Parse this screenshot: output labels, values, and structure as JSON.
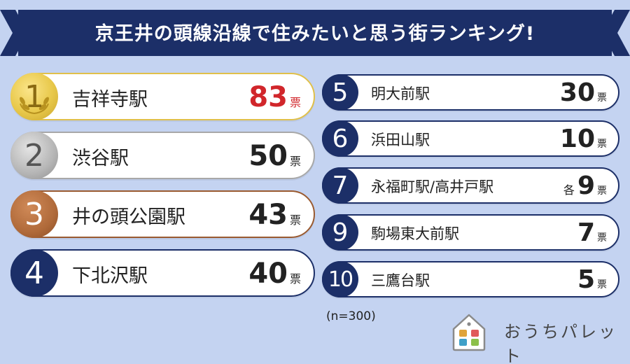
{
  "title": "京王井の頭線沿線で住みたいと思う街ランキング!",
  "colors": {
    "background": "#c4d3f1",
    "navy": "#1c2f68",
    "gold": "#e8c84a",
    "silver": "#b5b5b5",
    "bronze": "#b06a3a",
    "red_votes": "#d1262b"
  },
  "rankings": [
    {
      "rank": "1",
      "name": "吉祥寺駅",
      "votes": "83",
      "unit": "票",
      "prefix": ""
    },
    {
      "rank": "2",
      "name": "渋谷駅",
      "votes": "50",
      "unit": "票",
      "prefix": ""
    },
    {
      "rank": "3",
      "name": "井の頭公園駅",
      "votes": "43",
      "unit": "票",
      "prefix": ""
    },
    {
      "rank": "4",
      "name": "下北沢駅",
      "votes": "40",
      "unit": "票",
      "prefix": ""
    },
    {
      "rank": "5",
      "name": "明大前駅",
      "votes": "30",
      "unit": "票",
      "prefix": ""
    },
    {
      "rank": "6",
      "name": "浜田山駅",
      "votes": "10",
      "unit": "票",
      "prefix": ""
    },
    {
      "rank": "7",
      "name": "永福町駅/高井戸駅",
      "votes": "9",
      "unit": "票",
      "prefix": "各"
    },
    {
      "rank": "9",
      "name": "駒場東大前駅",
      "votes": "7",
      "unit": "票",
      "prefix": ""
    },
    {
      "rank": "10",
      "name": "三鷹台駅",
      "votes": "5",
      "unit": "票",
      "prefix": ""
    }
  ],
  "footnote": "(n=300)",
  "logo": {
    "text": "おうちパレット",
    "icon": "house-icon"
  }
}
